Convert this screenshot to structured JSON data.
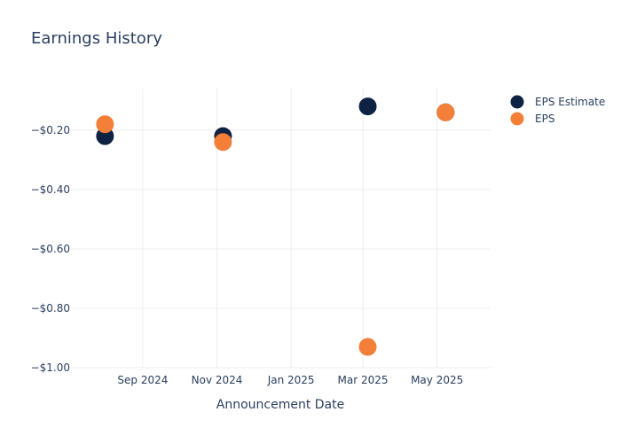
{
  "chart_data": {
    "type": "scatter",
    "title": "Earnings History",
    "xlabel": "Announcement Date",
    "ylabel": "",
    "x_ticks": [
      {
        "date": "2024-09-01",
        "label": "Sep 2024"
      },
      {
        "date": "2024-11-01",
        "label": "Nov 2024"
      },
      {
        "date": "2025-01-01",
        "label": "Jan 2025"
      },
      {
        "date": "2025-03-01",
        "label": "Mar 2025"
      },
      {
        "date": "2025-05-01",
        "label": "May 2025"
      }
    ],
    "y_ticks": [
      {
        "value": -0.2,
        "label": "−$0.20"
      },
      {
        "value": -0.4,
        "label": "−$0.40"
      },
      {
        "value": -0.6,
        "label": "−$0.60"
      },
      {
        "value": -0.8,
        "label": "−$0.80"
      },
      {
        "value": -1.0,
        "label": "−$1.00"
      }
    ],
    "xlim": [
      "2024-07-04",
      "2025-06-14"
    ],
    "ylim": [
      -1.0,
      -0.06
    ],
    "grid": true,
    "legend_position": "top-right",
    "series": [
      {
        "name": "EPS Estimate",
        "color": "#0e2344",
        "points": [
          {
            "x": "2024-08-01",
            "y": -0.22
          },
          {
            "x": "2024-11-06",
            "y": -0.22
          },
          {
            "x": "2025-03-05",
            "y": -0.12
          },
          {
            "x": "2025-05-08",
            "y": -0.14
          }
        ]
      },
      {
        "name": "EPS",
        "color": "#f47f38",
        "points": [
          {
            "x": "2024-08-01",
            "y": -0.18
          },
          {
            "x": "2024-11-06",
            "y": -0.24
          },
          {
            "x": "2025-03-05",
            "y": -0.93
          },
          {
            "x": "2025-05-08",
            "y": -0.14
          }
        ]
      }
    ]
  }
}
